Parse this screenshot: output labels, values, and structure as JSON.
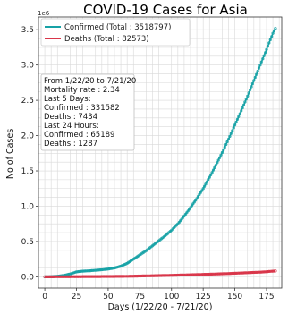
{
  "chart_data": {
    "type": "line",
    "title": "COVID-19 Cases for Asia",
    "xlabel": "Days (1/22/20 - 7/21/20)",
    "ylabel": "No of Cases",
    "y_scale_label": "1e6",
    "xlim": [
      -5,
      187
    ],
    "ylim": [
      -160000,
      3680000
    ],
    "xticks": [
      0,
      25,
      50,
      75,
      100,
      125,
      150,
      175
    ],
    "yticks": [
      0,
      500000,
      1000000,
      1500000,
      2000000,
      2500000,
      3000000,
      3500000
    ],
    "ytick_labels": [
      "0.0",
      "0.5",
      "1.0",
      "1.5",
      "2.0",
      "2.5",
      "3.0",
      "3.5"
    ],
    "grid": true,
    "legend_position": "top-left",
    "series": [
      {
        "name": "Confirmed (Total : 3518797)",
        "color": "#17a2a6",
        "x": [
          0,
          5,
          10,
          15,
          20,
          25,
          30,
          35,
          40,
          45,
          50,
          55,
          60,
          65,
          70,
          75,
          80,
          85,
          90,
          95,
          100,
          105,
          110,
          115,
          120,
          125,
          130,
          135,
          140,
          145,
          150,
          155,
          160,
          165,
          170,
          175,
          180,
          182
        ],
        "y": [
          0,
          2000,
          8000,
          20000,
          40000,
          70000,
          80000,
          85000,
          92000,
          100000,
          110000,
          125000,
          150000,
          190000,
          250000,
          310000,
          370000,
          440000,
          510000,
          580000,
          660000,
          750000,
          860000,
          980000,
          1110000,
          1250000,
          1410000,
          1580000,
          1760000,
          1950000,
          2150000,
          2350000,
          2560000,
          2780000,
          3000000,
          3220000,
          3450000,
          3518797
        ]
      },
      {
        "name": "Deaths (Total : 82573)",
        "color": "#d9364a",
        "x": [
          0,
          10,
          20,
          30,
          40,
          50,
          60,
          70,
          80,
          90,
          100,
          110,
          120,
          130,
          140,
          150,
          160,
          170,
          180,
          182
        ],
        "y": [
          0,
          400,
          1500,
          3000,
          3800,
          4500,
          6000,
          9000,
          13000,
          17000,
          21000,
          26000,
          31000,
          37000,
          43000,
          50000,
          58000,
          66000,
          79000,
          82573
        ]
      }
    ],
    "annotation": [
      "From 1/22/20 to 7/21/20",
      "Mortality rate : 2.34",
      "Last 5 Days:",
      "Confirmed : 331582",
      "Deaths : 7434",
      "Last 24 Hours:",
      "Confirmed : 65189",
      "Deaths : 1287"
    ]
  }
}
